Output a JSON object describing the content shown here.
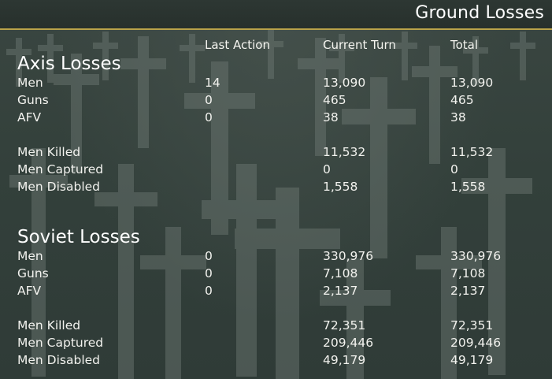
{
  "window": {
    "title": "Ground Losses"
  },
  "columns": {
    "last_action": "Last Action",
    "current_turn": "Current Turn",
    "total": "Total"
  },
  "axis": {
    "title": "Axis Losses",
    "rows": [
      {
        "label": "Men",
        "last": "14",
        "current": "13,090",
        "total": "13,090"
      },
      {
        "label": "Guns",
        "last": "0",
        "current": "465",
        "total": "465"
      },
      {
        "label": "AFV",
        "last": "0",
        "current": "38",
        "total": "38"
      },
      {
        "label": "Men Killed",
        "last": "",
        "current": "11,532",
        "total": "11,532"
      },
      {
        "label": "Men Captured",
        "last": "",
        "current": "0",
        "total": "0"
      },
      {
        "label": "Men Disabled",
        "last": "",
        "current": "1,558",
        "total": "1,558"
      }
    ]
  },
  "soviet": {
    "title": "Soviet Losses",
    "rows": [
      {
        "label": "Men",
        "last": "0",
        "current": "330,976",
        "total": "330,976"
      },
      {
        "label": "Guns",
        "last": "0",
        "current": "7,108",
        "total": "7,108"
      },
      {
        "label": "AFV",
        "last": "0",
        "current": "2,137",
        "total": "2,137"
      },
      {
        "label": "Men Killed",
        "last": "",
        "current": "72,351",
        "total": "72,351"
      },
      {
        "label": "Men Captured",
        "last": "",
        "current": "209,446",
        "total": "209,446"
      },
      {
        "label": "Men Disabled",
        "last": "",
        "current": "49,179",
        "total": "49,179"
      }
    ]
  },
  "colors": {
    "accent": "#b9a24a",
    "background": "#2f3b36"
  },
  "background_image": "cemetery-crosses"
}
